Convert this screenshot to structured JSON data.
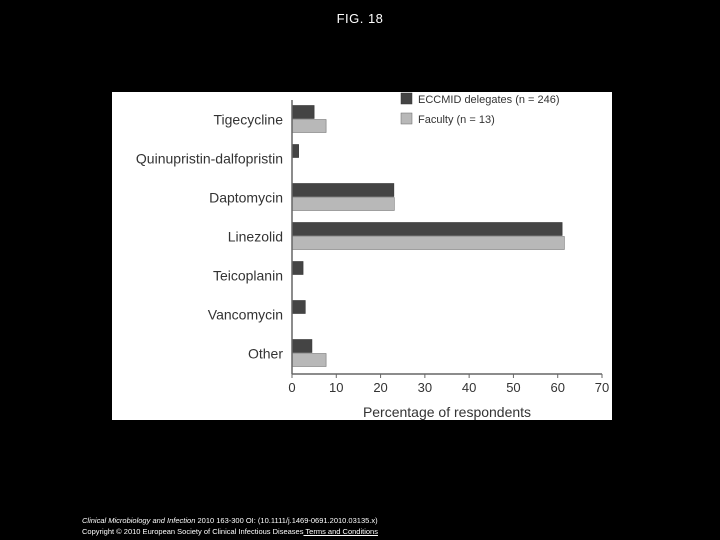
{
  "slide": {
    "title": "FIG. 18"
  },
  "footer": {
    "journal": "Clinical Microbiology and Infection",
    "citation": " 2010 163-300 OI: (10.1111/j.1469-0691.2010.03135.x)",
    "copyright": "Copyright © 2010 European Society of Clinical Infectious Diseases",
    "terms_link": " Terms and Conditions"
  },
  "colors": {
    "delegates": "#444444",
    "faculty": "#b8b8b8",
    "background": "#000000",
    "panel": "#ffffff"
  },
  "chart_data": {
    "type": "bar",
    "orientation": "horizontal",
    "categories": [
      "Tigecycline",
      "Quinupristin-dalfopristin",
      "Daptomycin",
      "Linezolid",
      "Teicoplanin",
      "Vancomycin",
      "Other"
    ],
    "series": [
      {
        "name": "ECCMID delegates (n = 246)",
        "values": [
          5,
          1.5,
          23,
          61,
          2.5,
          3,
          4.5
        ]
      },
      {
        "name": "Faculty (n = 13)",
        "values": [
          7.7,
          0,
          23.1,
          61.5,
          0,
          0,
          7.7
        ]
      }
    ],
    "xlabel": "Percentage of respondents",
    "ylabel": "",
    "xlim": [
      0,
      70
    ],
    "xticks": [
      "0",
      "10",
      "20",
      "30",
      "40",
      "50",
      "60",
      "70"
    ],
    "grid": false,
    "legend_position": "top-right"
  }
}
